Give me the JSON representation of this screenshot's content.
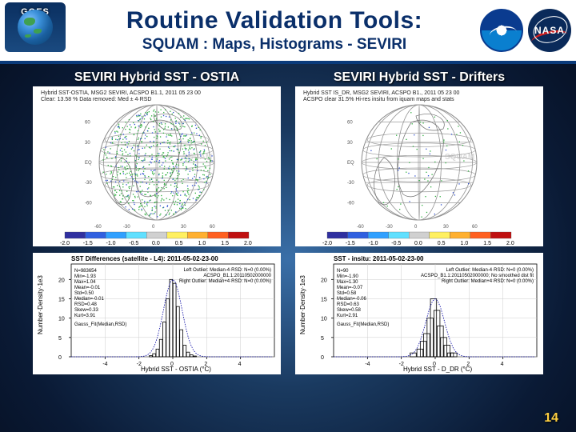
{
  "header": {
    "goes_label": "GOES",
    "title": "Routine Validation Tools:",
    "subtitle": "SQUAM : Maps, Histograms - SEVIRI",
    "nasa_label": "NASA"
  },
  "page_number": "14",
  "left": {
    "title": "SEVIRI Hybrid SST - OSTIA",
    "map": {
      "type": "map",
      "title_line1": "Hybrid SST-OSTIA, MSG2 SEVIRI, ACSPO B1.1, 2011 05 23 00",
      "title_line2": "Clear: 13.58 %                    Data removed: Med ± 4·RSD",
      "lat_labels": [
        "60",
        "30",
        "EQ",
        "-30",
        "-60"
      ],
      "lon_labels": [
        "-60",
        "-30",
        "0",
        "30",
        "60"
      ],
      "watermark": "SQUAM",
      "colorbar": {
        "ticks": [
          "-2.0",
          "-1.5",
          "-1.0",
          "-0.5",
          "0.0",
          "0.5",
          "1.0",
          "1.5",
          "2.0"
        ],
        "colors": [
          "#3030a0",
          "#3060e0",
          "#30a0ff",
          "#60e0ff",
          "#d0d0d0",
          "#fff060",
          "#ffb030",
          "#ff6020",
          "#c01010"
        ]
      },
      "coverage": "dense",
      "green": "#2fae3f",
      "blue": "#2f4fd0"
    },
    "hist": {
      "type": "histogram",
      "title": "SST Differences (satellite - L4): 2011-05-02-23-00",
      "xlabel": "Hybrid SST - OSTIA (°C)",
      "ylabel": "Number·Density·1e3",
      "xlim": [
        -6,
        6
      ],
      "xticks": [
        -4,
        -2,
        0,
        2,
        4
      ],
      "ylim": [
        0,
        24
      ],
      "yticks": [
        0,
        5,
        10,
        15,
        20
      ],
      "stats_left": [
        "N=983654",
        "Min=-1.93",
        "Max=1.04",
        "Mean=-0.01",
        "Std=0.50",
        "Median=-0.01",
        "RSD=0.48",
        "Skew=0.33",
        "Kurt=3.91"
      ],
      "stats_bottom": "Gauss_Fit(Median,RSD)",
      "stats_right": [
        "Left Outlier: Median-4·RSD: N=0 (0.00%)",
        "ACSPO_B1.1:20110502000000",
        "Right Outlier: Median+4·RSD: N=0 (0.00%)"
      ],
      "bins": {
        "centers": [
          -1.3,
          -1.1,
          -0.9,
          -0.7,
          -0.5,
          -0.3,
          -0.1,
          0.1,
          0.3,
          0.5,
          0.7,
          0.9,
          1.1,
          1.3
        ],
        "heights": [
          0.3,
          0.8,
          2.0,
          4.5,
          9.0,
          15,
          20,
          19,
          13,
          7,
          3,
          1.2,
          0.5,
          0.2
        ]
      },
      "curve_color": "#0000a0",
      "background_color": "#ffffff"
    }
  },
  "right": {
    "title": "SEVIRI Hybrid SST - Drifters",
    "map": {
      "type": "map",
      "title_line1": "Hybrid SST IS_DR, MSG2 SEVIRI, ACSPO B1., 2011 05 23 00",
      "title_line2": "ACSPO clear 31.5%   Hi-res insitu from iquam maps and stats",
      "lat_labels": [
        "60",
        "30",
        "EQ",
        "-30",
        "-60"
      ],
      "lon_labels": [
        "-60",
        "-30",
        "0",
        "30",
        "60"
      ],
      "watermark": "SQUAM",
      "colorbar": {
        "ticks": [
          "-2.0",
          "-1.5",
          "-1.0",
          "-0.5",
          "0.0",
          "0.5",
          "1.0",
          "1.5",
          "2.0"
        ],
        "colors": [
          "#3030a0",
          "#3060e0",
          "#30a0ff",
          "#60e0ff",
          "#d0d0d0",
          "#fff060",
          "#ffb030",
          "#ff6020",
          "#c01010"
        ]
      },
      "coverage": "sparse",
      "green": "#2fae3f",
      "blue": "#2f4fd0"
    },
    "hist": {
      "type": "histogram",
      "title": "SST - insitu: 2011-05-02-23-00",
      "xlabel": "Hybrid SST - D_DR (°C)",
      "ylabel": "Number·Density·1e3",
      "xlim": [
        -6,
        6
      ],
      "xticks": [
        -4,
        -2,
        0,
        2,
        4
      ],
      "ylim": [
        0,
        24
      ],
      "yticks": [
        0,
        5,
        10,
        15,
        20
      ],
      "stats_left": [
        "N=90",
        "Min=-1.90",
        "Max=1.30",
        "Mean=-0.07",
        "Std=0.58",
        "Median=-0.06",
        "RSD=0.63",
        "Skew=0.58",
        "Kurt=2.91"
      ],
      "stats_bottom": "Gauss_Fit(Median,RSD)",
      "stats_right": [
        "Left Outlier: Median-4·RSD: N=0 (0.00%)",
        "ACSPO_B1.1:20110502000000; No smoothed dist fit",
        "Right Outlier: Median+4·RSD: N=0 (0.00%)"
      ],
      "bins": {
        "centers": [
          -1.3,
          -0.9,
          -0.7,
          -0.5,
          -0.3,
          -0.1,
          0.1,
          0.3,
          0.5,
          0.7,
          0.9,
          1.1
        ],
        "heights": [
          1,
          2,
          4,
          6,
          10,
          15,
          12,
          8,
          5,
          3,
          1,
          1
        ]
      },
      "curve_color": "#0000a0",
      "background_color": "#ffffff"
    }
  }
}
